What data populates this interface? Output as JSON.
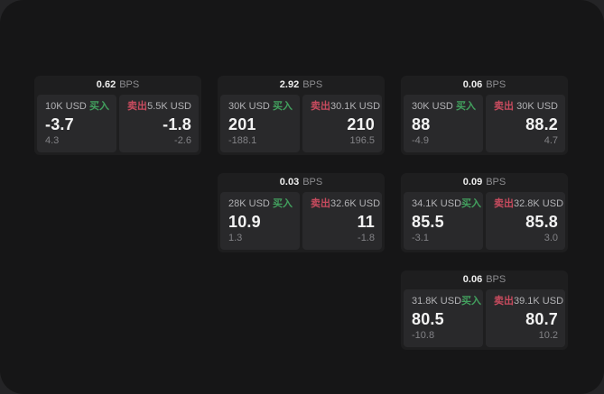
{
  "labels": {
    "bps_unit": "BPS",
    "buy": "买入",
    "sell": "卖出"
  },
  "colors": {
    "buy": "#42a05e",
    "sell": "#c74b5e",
    "surface": "#161617",
    "card": "#1e1e1f",
    "panel": "#29292b"
  },
  "cards": [
    {
      "bps": "0.62",
      "buy": {
        "amount": "10K USD",
        "price": "-3.7",
        "delta": "4.3"
      },
      "sell": {
        "amount": "5.5K USD",
        "price": "-1.8",
        "delta": "-2.6"
      }
    },
    {
      "bps": "2.92",
      "buy": {
        "amount": "30K USD",
        "price": "201",
        "delta": "-188.1"
      },
      "sell": {
        "amount": "30.1K USD",
        "price": "210",
        "delta": "196.5"
      }
    },
    {
      "bps": "0.06",
      "buy": {
        "amount": "30K USD",
        "price": "88",
        "delta": "-4.9"
      },
      "sell": {
        "amount": "30K USD",
        "price": "88.2",
        "delta": "4.7"
      }
    },
    {
      "bps": "0.03",
      "buy": {
        "amount": "28K USD",
        "price": "10.9",
        "delta": "1.3"
      },
      "sell": {
        "amount": "32.6K USD",
        "price": "11",
        "delta": "-1.8"
      }
    },
    {
      "bps": "0.09",
      "buy": {
        "amount": "34.1K USD",
        "price": "85.5",
        "delta": "-3.1"
      },
      "sell": {
        "amount": "32.8K USD",
        "price": "85.8",
        "delta": "3.0"
      }
    },
    {
      "bps": "0.06",
      "buy": {
        "amount": "31.8K USD",
        "price": "80.5",
        "delta": "-10.8"
      },
      "sell": {
        "amount": "39.1K USD",
        "price": "80.7",
        "delta": "10.2"
      }
    }
  ]
}
